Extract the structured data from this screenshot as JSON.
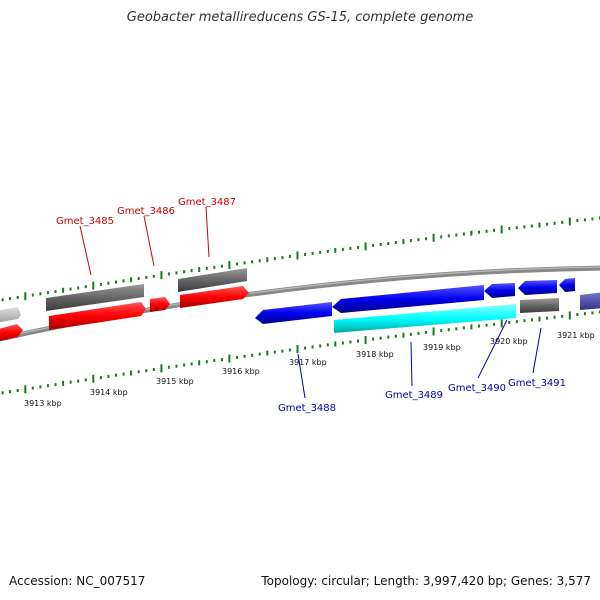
{
  "title": "Geobacter metallireducens GS-15, complete genome",
  "accession": "Accession: NC_007517",
  "summary": "Topology: circular; Length: 3,997,420 bp; Genes: 3,577",
  "colors": {
    "backbone": "#8c8c8c",
    "tick": "#1a7a1a",
    "forward_gene": "#ff0000",
    "reverse_gene": "#0000ee",
    "cds_forward": "#666666",
    "cds_reverse": "#00ffff",
    "label_forward": "#cc0000",
    "label_reverse": "#0000aa"
  },
  "ruler_labels": [
    "3913 kbp",
    "3914 kbp",
    "3915 kbp",
    "3916 kbp",
    "3917 kbp",
    "3918 kbp",
    "3919 kbp",
    "3920 kbp",
    "3921 kbp"
  ],
  "genes": [
    {
      "name": "Gmet_3485",
      "strand": "forward"
    },
    {
      "name": "Gmet_3486",
      "strand": "forward"
    },
    {
      "name": "Gmet_3487",
      "strand": "forward"
    },
    {
      "name": "Gmet_3488",
      "strand": "reverse"
    },
    {
      "name": "Gmet_3489",
      "strand": "reverse"
    },
    {
      "name": "Gmet_3490",
      "strand": "reverse"
    },
    {
      "name": "Gmet_3491",
      "strand": "reverse"
    }
  ]
}
